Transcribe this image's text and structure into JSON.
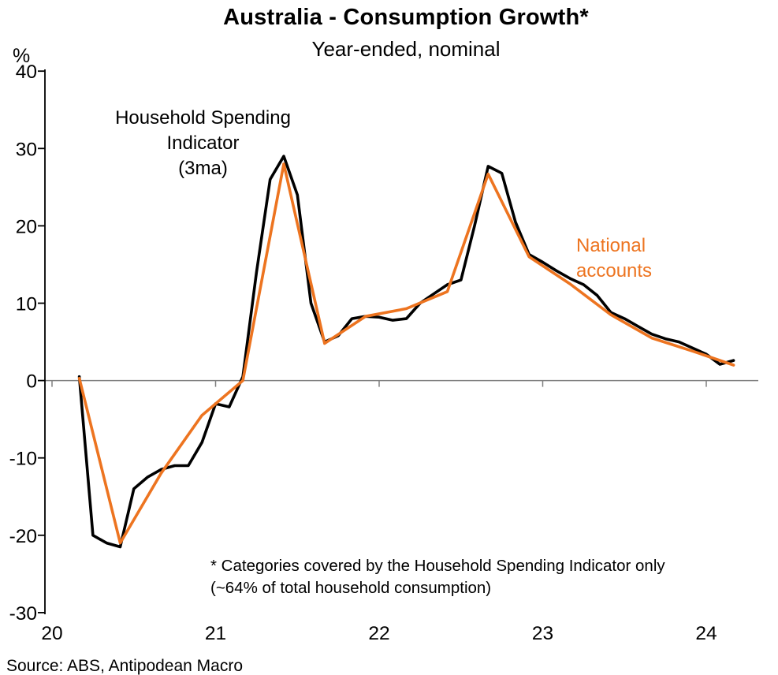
{
  "chart_data": {
    "type": "line",
    "title": "Australia - Consumption Growth*",
    "subtitle": "Year-ended, nominal",
    "ylabel": "%",
    "xlabel": "",
    "ylim": [
      -30,
      40
    ],
    "y_ticks": [
      40,
      30,
      20,
      10,
      0,
      -10,
      -20,
      -30
    ],
    "y_tick_labels": [
      "40",
      "30",
      "20",
      "10",
      "0",
      "-10",
      "-20",
      "-30"
    ],
    "x_tick_years": [
      2020,
      2021,
      2022,
      2023,
      2024
    ],
    "x_tick_labels": [
      "20",
      "21",
      "22",
      "23",
      "24"
    ],
    "grid": "zero-line-only",
    "legend_position": "inline-annotations",
    "axis_color": "#000000",
    "zero_line_color": "#7f7f7f",
    "annotations": [
      {
        "id": "hsi",
        "color": "#000000",
        "lines": [
          "Household Spending",
          "Indicator",
          "(3ma)"
        ]
      },
      {
        "id": "national-accounts",
        "color": "#ED7420",
        "lines": [
          "National",
          "accounts"
        ]
      }
    ],
    "footnote_lines": [
      "* Categories covered by the Household Spending Indicator only",
      "(~64% of total household consumption)"
    ],
    "source": "Source: ABS, Antipodean Macro",
    "series": [
      {
        "id": "household-spending-indicator",
        "name": "Household Spending Indicator (3ma)",
        "color": "#000000",
        "stroke_width": 3.6,
        "freq": "monthly",
        "dates": [
          "2020-03",
          "2020-04",
          "2020-05",
          "2020-06",
          "2020-07",
          "2020-08",
          "2020-09",
          "2020-10",
          "2020-11",
          "2020-12",
          "2021-01",
          "2021-02",
          "2021-03",
          "2021-04",
          "2021-05",
          "2021-06",
          "2021-07",
          "2021-08",
          "2021-09",
          "2021-10",
          "2021-11",
          "2021-12",
          "2022-01",
          "2022-02",
          "2022-03",
          "2022-04",
          "2022-05",
          "2022-06",
          "2022-07",
          "2022-08",
          "2022-09",
          "2022-10",
          "2022-11",
          "2022-12",
          "2023-01",
          "2023-02",
          "2023-03",
          "2023-04",
          "2023-05",
          "2023-06",
          "2023-07",
          "2023-08",
          "2023-09",
          "2023-10",
          "2023-11",
          "2023-12",
          "2024-01",
          "2024-02",
          "2024-03"
        ],
        "values": [
          0.5,
          -20,
          -21,
          -21.5,
          -14,
          -12.5,
          -11.5,
          -11,
          -11,
          -8,
          -3,
          -3.4,
          0.5,
          14,
          26,
          29,
          24,
          10,
          5,
          5.8,
          8,
          8.3,
          8.2,
          7.8,
          8,
          10,
          11.2,
          12.4,
          13,
          20,
          27.7,
          26.8,
          20.5,
          16.3,
          15.3,
          14.2,
          13.2,
          12.4,
          11,
          8.8,
          8,
          7,
          6,
          5.4,
          5,
          4.2,
          3.4,
          2.1,
          2.6
        ]
      },
      {
        "id": "national-accounts",
        "name": "National accounts",
        "color": "#ED7420",
        "stroke_width": 3.6,
        "freq": "quarterly",
        "dates": [
          "2020-03",
          "2020-06",
          "2020-09",
          "2020-12",
          "2021-03",
          "2021-06",
          "2021-09",
          "2021-12",
          "2022-03",
          "2022-06",
          "2022-09",
          "2022-12",
          "2023-03",
          "2023-06",
          "2023-09",
          "2023-12",
          "2024-03"
        ],
        "values": [
          0.3,
          -21,
          -12,
          -4.5,
          0,
          28,
          4.8,
          8.3,
          9.3,
          11.5,
          26.7,
          16,
          12.5,
          8.5,
          5.5,
          3.8,
          2.0
        ]
      }
    ]
  }
}
